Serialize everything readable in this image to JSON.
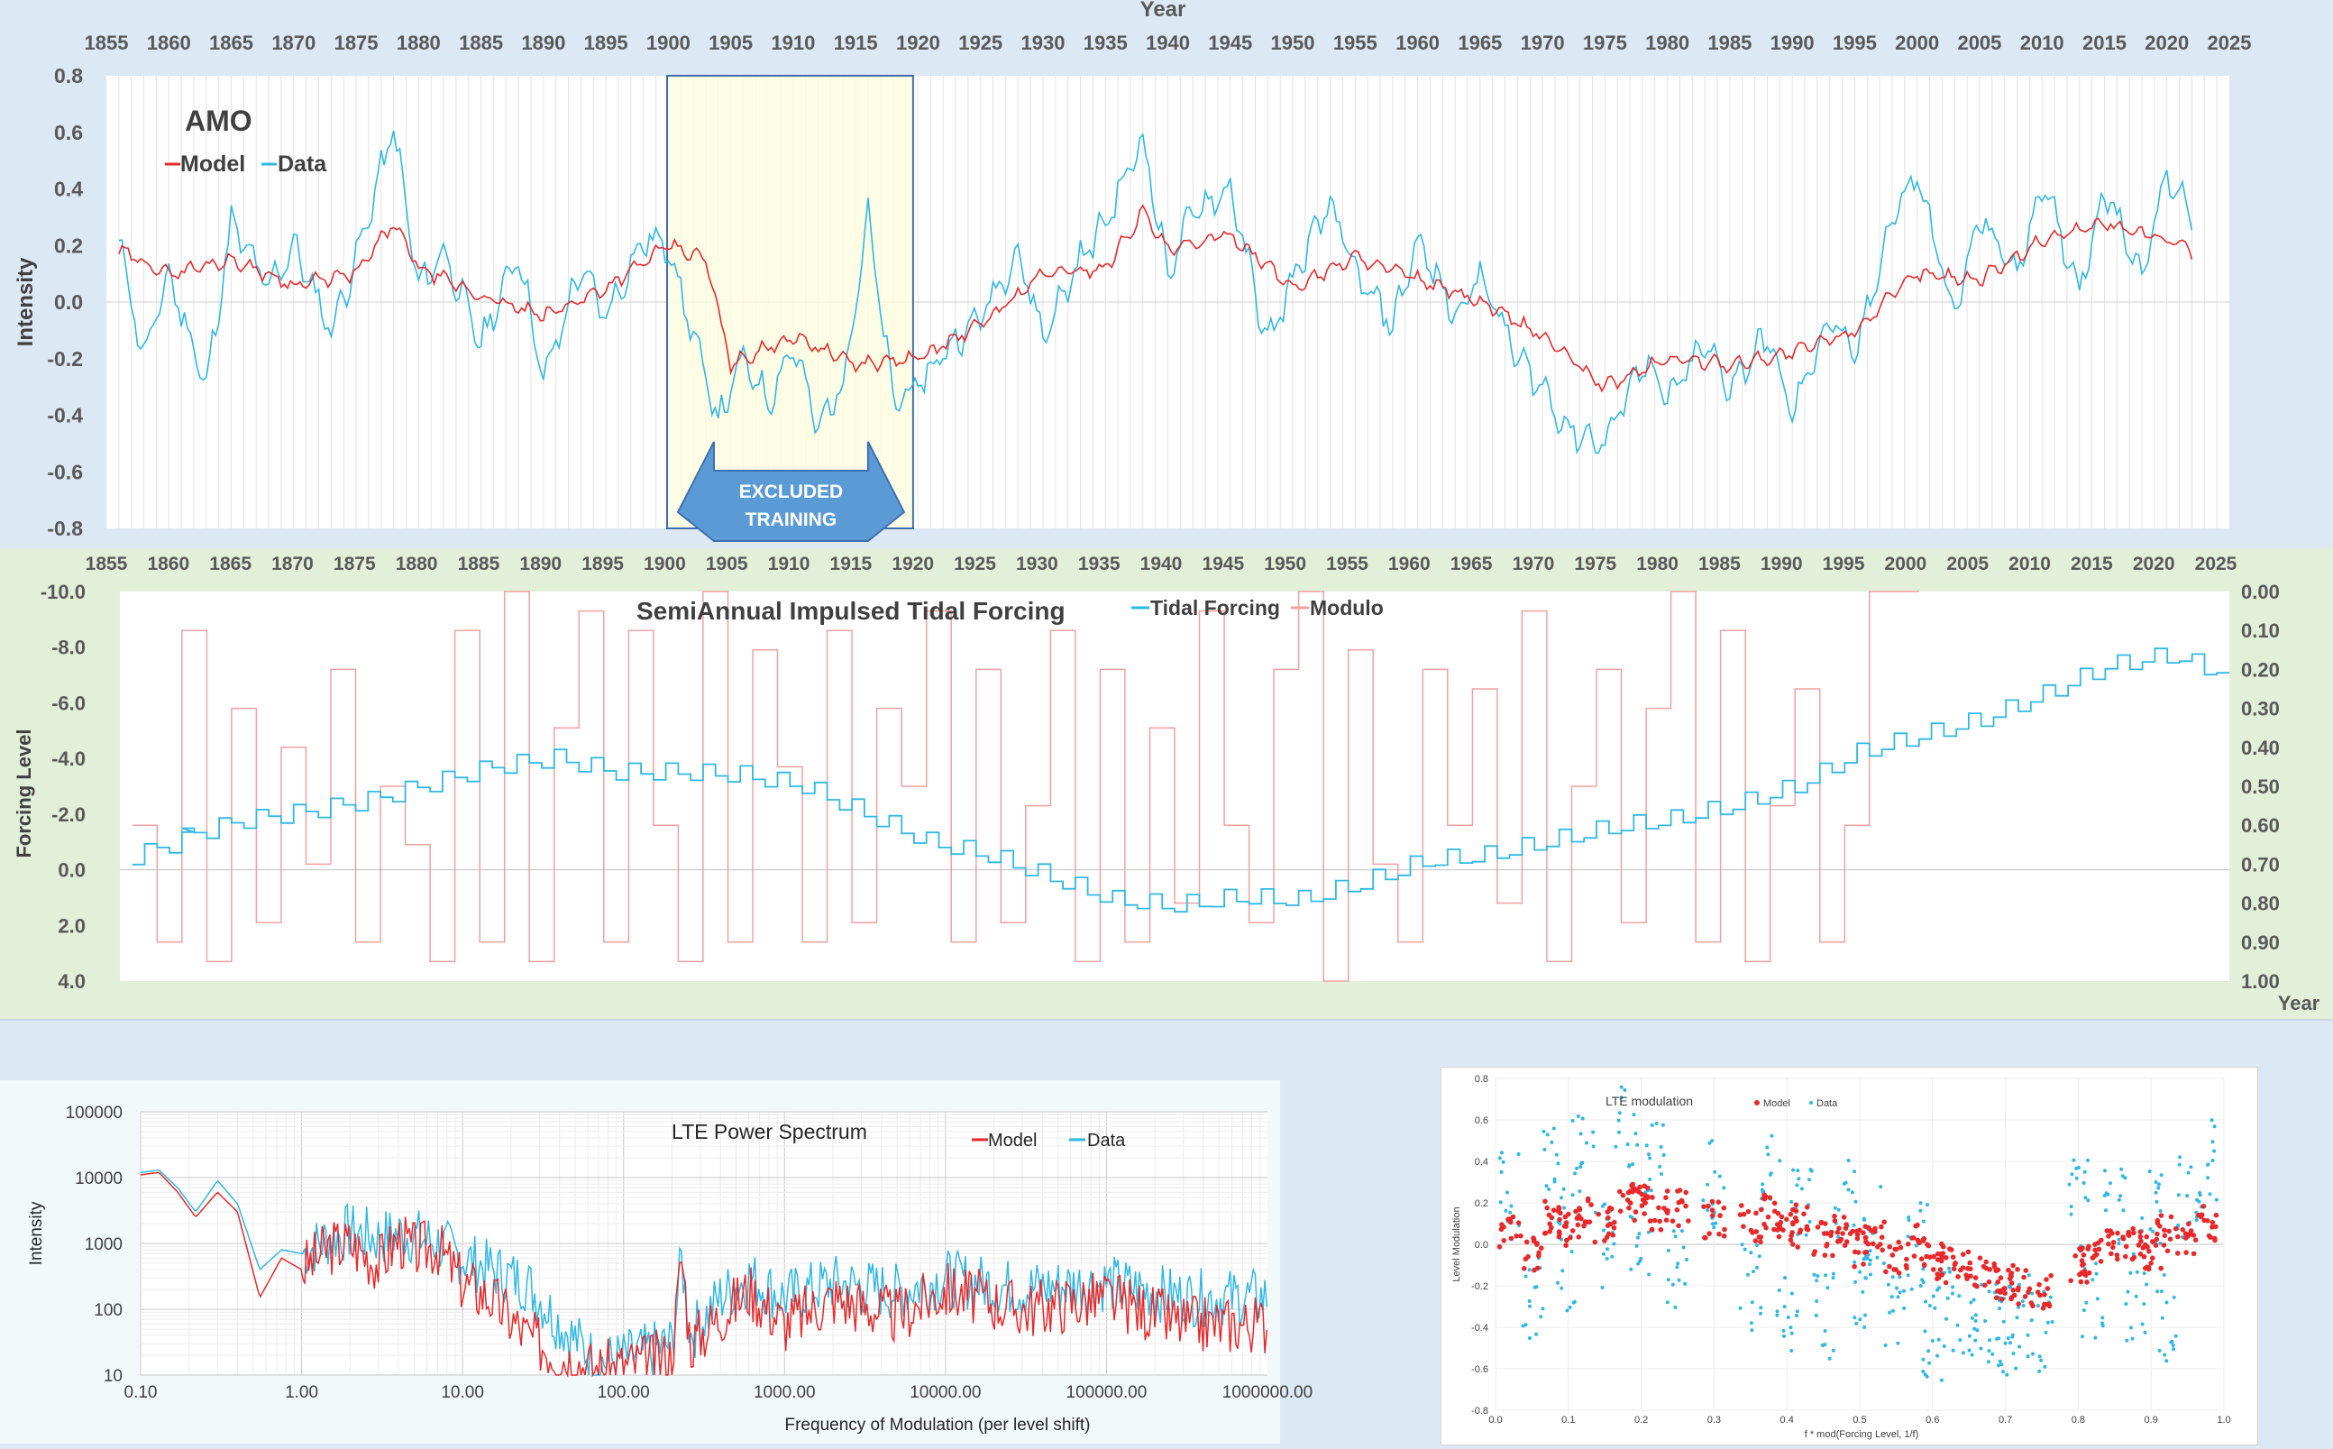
{
  "chart_data": [
    {
      "type": "line",
      "title": "AMO",
      "x_axis_title": "Year",
      "ylabel": "Intensity",
      "xlim": [
        1855,
        2025
      ],
      "ylim": [
        -0.8,
        0.8
      ],
      "x_ticks": [
        1855,
        1860,
        1865,
        1870,
        1875,
        1880,
        1885,
        1890,
        1895,
        1900,
        1905,
        1910,
        1915,
        1920,
        1925,
        1930,
        1935,
        1940,
        1945,
        1950,
        1955,
        1960,
        1965,
        1970,
        1975,
        1980,
        1985,
        1990,
        1995,
        2000,
        2005,
        2010,
        2015,
        2020,
        2025
      ],
      "y_ticks": [
        "0.8",
        "0.6",
        "0.4",
        "0.2",
        "0.0",
        "-0.2",
        "-0.4",
        "-0.6",
        "-0.8"
      ],
      "legend": "top-left",
      "annotation": {
        "label_line1": "EXCLUDED",
        "label_line2": "TRAINING",
        "x_range": [
          1899.9,
          1919.6
        ]
      },
      "series": [
        {
          "name": "Model",
          "color": "#e8292b",
          "x": [
            1856,
            1860,
            1865,
            1870,
            1875,
            1878,
            1880,
            1885,
            1890,
            1895,
            1900,
            1903,
            1905,
            1910,
            1915,
            1920,
            1925,
            1930,
            1935,
            1938,
            1940,
            1945,
            1950,
            1955,
            1960,
            1965,
            1970,
            1975,
            1980,
            1985,
            1990,
            1995,
            2000,
            2005,
            2010,
            2015,
            2020,
            2022
          ],
          "y": [
            0.18,
            0.1,
            0.15,
            0.06,
            0.1,
            0.28,
            0.12,
            0.02,
            -0.05,
            0.05,
            0.2,
            0.15,
            -0.22,
            -0.12,
            -0.22,
            -0.2,
            -0.08,
            0.1,
            0.12,
            0.32,
            0.18,
            0.24,
            0.05,
            0.16,
            0.08,
            0.0,
            -0.12,
            -0.3,
            -0.2,
            -0.22,
            -0.18,
            -0.1,
            0.1,
            0.08,
            0.22,
            0.28,
            0.22,
            0.18
          ]
        },
        {
          "name": "Data",
          "color": "#2fb8e6",
          "x": [
            1856,
            1858,
            1860,
            1863,
            1865,
            1868,
            1870,
            1873,
            1875,
            1878,
            1880,
            1882,
            1885,
            1888,
            1890,
            1893,
            1895,
            1898,
            1900,
            1902,
            1904,
            1906,
            1908,
            1910,
            1912,
            1914,
            1916,
            1918,
            1920,
            1922,
            1925,
            1928,
            1930,
            1933,
            1935,
            1938,
            1940,
            1942,
            1945,
            1948,
            1950,
            1953,
            1955,
            1958,
            1960,
            1963,
            1965,
            1968,
            1970,
            1972,
            1975,
            1978,
            1980,
            1983,
            1985,
            1988,
            1990,
            1993,
            1995,
            1998,
            2000,
            2003,
            2005,
            2008,
            2010,
            2013,
            2015,
            2018,
            2020,
            2022
          ],
          "y": [
            0.22,
            -0.2,
            0.1,
            -0.3,
            0.28,
            0.05,
            0.2,
            -0.1,
            0.15,
            0.62,
            0.05,
            0.18,
            -0.15,
            0.18,
            -0.28,
            0.12,
            -0.05,
            0.22,
            0.2,
            -0.12,
            -0.42,
            -0.2,
            -0.35,
            -0.15,
            -0.45,
            -0.28,
            0.3,
            -0.35,
            -0.3,
            -0.18,
            -0.05,
            0.18,
            -0.12,
            0.15,
            0.28,
            0.58,
            0.1,
            0.32,
            0.4,
            -0.15,
            0.08,
            0.35,
            0.1,
            -0.08,
            0.22,
            -0.05,
            0.1,
            -0.2,
            -0.3,
            -0.45,
            -0.5,
            -0.2,
            -0.35,
            -0.15,
            -0.3,
            -0.12,
            -0.4,
            -0.05,
            -0.2,
            0.3,
            0.45,
            -0.05,
            0.3,
            0.1,
            0.42,
            0.05,
            0.4,
            0.1,
            0.45,
            0.32
          ]
        }
      ]
    },
    {
      "type": "line",
      "title": "SemiAnnual Impulsed Tidal Forcing",
      "x_axis_title": "Year",
      "ylabel": "Forcing Level",
      "xlim": [
        1855,
        2025
      ],
      "ylim": [
        4.0,
        -10.0
      ],
      "y2lim": [
        1.0,
        0.0
      ],
      "x_ticks": [
        1855,
        1860,
        1865,
        1870,
        1875,
        1880,
        1885,
        1890,
        1895,
        1900,
        1905,
        1910,
        1915,
        1920,
        1925,
        1930,
        1935,
        1940,
        1945,
        1950,
        1955,
        1960,
        1965,
        1970,
        1975,
        1980,
        1985,
        1990,
        1995,
        2000,
        2005,
        2010,
        2015,
        2020,
        2025
      ],
      "y_ticks": [
        "-10.0",
        "-8.0",
        "-6.0",
        "-4.0",
        "-2.0",
        "0.0",
        "2.0",
        "4.0"
      ],
      "y2_ticks": [
        "0.00",
        "0.10",
        "0.20",
        "0.30",
        "0.40",
        "0.50",
        "0.60",
        "0.70",
        "0.80",
        "0.90",
        "1.00"
      ],
      "legend": "top",
      "series": [
        {
          "name": "Tidal Forcing",
          "color": "#2fb8e6",
          "x": [
            1856,
            1860,
            1865,
            1870,
            1875,
            1880,
            1885,
            1890,
            1895,
            1900,
            1905,
            1910,
            1915,
            1920,
            1925,
            1930,
            1935,
            1940,
            1945,
            1950,
            1955,
            1960,
            1965,
            1970,
            1975,
            1980,
            1985,
            1990,
            1995,
            2000,
            2005,
            2010,
            2015,
            2020,
            2022
          ],
          "y": [
            -0.5,
            -1.2,
            -1.8,
            -2.1,
            -2.5,
            -3.1,
            -3.7,
            -4.0,
            -3.5,
            -3.5,
            -3.4,
            -3.0,
            -2.0,
            -1.0,
            -0.5,
            0.3,
            1.1,
            1.3,
            1.0,
            1.1,
            0.5,
            -0.3,
            -0.5,
            -1.0,
            -1.5,
            -1.8,
            -2.3,
            -3.0,
            -4.2,
            -4.8,
            -5.4,
            -6.3,
            -7.3,
            -7.7,
            -7.0
          ]
        },
        {
          "name": "Modulo",
          "color": "#f4a0a0",
          "axis": "secondary",
          "x": [
            1856,
            1858,
            1860,
            1862,
            1864,
            1866,
            1868,
            1870,
            1872,
            1874,
            1876,
            1878,
            1880,
            1882,
            1884,
            1886,
            1888,
            1890,
            1892,
            1894,
            1896,
            1898,
            1900,
            1902,
            1904,
            1906,
            1908,
            1910,
            1912,
            1914,
            1916,
            1918,
            1920,
            1922,
            1924,
            1926,
            1928,
            1930,
            1932,
            1934,
            1936,
            1938,
            1940,
            1942,
            1944,
            1946,
            1948,
            1950,
            1952,
            1954,
            1956,
            1958,
            1960,
            1962,
            1964,
            1966,
            1968,
            1970,
            1972,
            1974,
            1976,
            1978,
            1980,
            1982,
            1984,
            1986,
            1988,
            1990,
            1992,
            1994,
            1996,
            1998,
            2000
          ],
          "y": [
            0.6,
            0.9,
            0.1,
            0.95,
            0.3,
            0.85,
            0.4,
            0.7,
            0.2,
            0.9,
            0.5,
            0.65,
            0.95,
            0.1,
            0.9,
            0.0,
            0.95,
            0.35,
            0.05,
            0.9,
            0.1,
            0.6,
            0.95,
            0.0,
            0.9,
            0.15,
            0.45,
            0.9,
            0.1,
            0.85,
            0.3,
            0.5,
            0.05,
            0.9,
            0.2,
            0.85,
            0.55,
            0.1,
            0.95,
            0.2,
            0.9,
            0.35,
            0.8,
            0.05,
            0.6,
            0.85,
            0.2,
            0.0,
            1.0,
            0.15,
            0.7,
            0.9,
            0.2,
            0.6,
            0.25,
            0.8,
            0.05,
            0.95,
            0.5,
            0.2,
            0.85,
            0.3,
            0.0,
            0.9,
            0.1,
            0.95,
            0.55,
            0.25,
            0.9,
            0.6,
            0.0,
            0.0,
            0.0
          ]
        }
      ]
    },
    {
      "type": "line",
      "title": "LTE Power Spectrum",
      "xlabel": "Frequency of Modulation (per level shift)",
      "ylabel": "Intensity",
      "x_scale": "log",
      "y_scale": "log",
      "xlim": [
        0.1,
        1000000
      ],
      "ylim": [
        10,
        100000
      ],
      "x_ticks": [
        "0.10",
        "1.00",
        "10.00",
        "100.00",
        "1000.00",
        "10000.00",
        "100000.00",
        "1000000.00"
      ],
      "y_ticks": [
        "100000",
        "10000",
        "1000",
        "100",
        "10"
      ],
      "legend": "top-right",
      "series": [
        {
          "name": "Model",
          "color": "#e8292b",
          "x": [
            0.1,
            0.13,
            0.17,
            0.22,
            0.3,
            0.4,
            0.55,
            0.75,
            1.0,
            1.5,
            2,
            3,
            4,
            5,
            7,
            10,
            15,
            25,
            40,
            70,
            120,
            200,
            230,
            260,
            400,
            600,
            1000,
            2000,
            5000,
            10000,
            30000,
            100000,
            300000,
            1000000
          ],
          "y": [
            11000,
            12000,
            6000,
            2500,
            6000,
            3000,
            150,
            600,
            400,
            900,
            1000,
            500,
            1200,
            800,
            900,
            250,
            150,
            40,
            20,
            12,
            15,
            20,
            700,
            30,
            80,
            200,
            60,
            150,
            80,
            200,
            100,
            150,
            60,
            60
          ]
        },
        {
          "name": "Data",
          "color": "#2fb8e6",
          "x": [
            0.1,
            0.13,
            0.17,
            0.22,
            0.3,
            0.4,
            0.55,
            0.75,
            1.0,
            1.5,
            2,
            3,
            4,
            5,
            7,
            10,
            15,
            25,
            40,
            70,
            120,
            200,
            230,
            260,
            400,
            600,
            1000,
            2000,
            5000,
            10000,
            30000,
            100000,
            300000,
            1000000
          ],
          "y": [
            12000,
            13000,
            7000,
            3000,
            9000,
            4000,
            400,
            800,
            700,
            1200,
            1500,
            1200,
            1400,
            1300,
            1000,
            600,
            400,
            250,
            60,
            15,
            20,
            30,
            600,
            40,
            150,
            300,
            150,
            250,
            180,
            300,
            200,
            250,
            150,
            150
          ]
        }
      ]
    },
    {
      "type": "scatter",
      "title": "LTE modulation",
      "xlabel": "f * mod(Forcing Level, 1/f)",
      "ylabel": "Level Modulation",
      "xlim": [
        0.0,
        1.0
      ],
      "ylim": [
        -0.8,
        0.8
      ],
      "x_ticks": [
        "0.0",
        "0.1",
        "0.2",
        "0.3",
        "0.4",
        "0.5",
        "0.6",
        "0.7",
        "0.8",
        "0.9",
        "1.0"
      ],
      "y_ticks": [
        "0.8",
        "0.6",
        "0.4",
        "0.2",
        "0.0",
        "-0.2",
        "-0.4",
        "-0.6",
        "-0.8"
      ],
      "legend": "top",
      "series": [
        {
          "name": "Model",
          "color": "#e8292b",
          "x": [
            0.02,
            0.05,
            0.08,
            0.1,
            0.12,
            0.15,
            0.18,
            0.2,
            0.22,
            0.25,
            0.3,
            0.35,
            0.38,
            0.4,
            0.42,
            0.45,
            0.48,
            0.5,
            0.52,
            0.55,
            0.58,
            0.6,
            0.62,
            0.65,
            0.68,
            0.7,
            0.72,
            0.75,
            0.8,
            0.82,
            0.85,
            0.88,
            0.9,
            0.92,
            0.95,
            0.98
          ],
          "y": [
            0.05,
            -0.05,
            0.12,
            0.08,
            0.15,
            0.1,
            0.2,
            0.22,
            0.15,
            0.18,
            0.12,
            0.1,
            0.15,
            0.05,
            0.12,
            0.02,
            0.08,
            -0.02,
            0.05,
            -0.05,
            0.02,
            -0.08,
            -0.1,
            -0.12,
            -0.15,
            -0.18,
            -0.2,
            -0.22,
            -0.1,
            -0.05,
            -0.02,
            0.0,
            -0.05,
            0.05,
            0.02,
            0.1
          ]
        },
        {
          "name": "Data",
          "color": "#2fb8e6",
          "x": [
            0.02,
            0.05,
            0.08,
            0.1,
            0.12,
            0.15,
            0.18,
            0.2,
            0.22,
            0.25,
            0.3,
            0.35,
            0.38,
            0.4,
            0.42,
            0.45,
            0.48,
            0.5,
            0.52,
            0.55,
            0.58,
            0.6,
            0.62,
            0.65,
            0.68,
            0.7,
            0.72,
            0.75,
            0.8,
            0.82,
            0.85,
            0.88,
            0.9,
            0.92,
            0.95,
            0.98
          ],
          "y": [
            0.25,
            -0.25,
            0.35,
            -0.1,
            0.45,
            0.0,
            0.55,
            0.05,
            0.4,
            -0.1,
            0.3,
            -0.2,
            0.35,
            -0.3,
            0.25,
            -0.35,
            0.2,
            -0.25,
            0.1,
            -0.3,
            0.0,
            -0.45,
            -0.3,
            -0.35,
            -0.4,
            -0.45,
            -0.35,
            -0.4,
            0.2,
            -0.3,
            0.15,
            -0.25,
            0.2,
            -0.35,
            0.25,
            0.4
          ]
        }
      ]
    }
  ]
}
